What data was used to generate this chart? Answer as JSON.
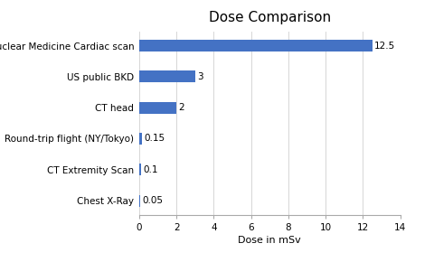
{
  "title": "Dose Comparison",
  "xlabel": "Dose in mSv",
  "categories": [
    "Chest X-Ray",
    "CT Extremity Scan",
    "Round-trip flight (NY/Tokyo)",
    "CT head",
    "US public BKD",
    "Nuclear Medicine Cardiac scan"
  ],
  "values": [
    0.05,
    0.1,
    0.15,
    2,
    3,
    12.5
  ],
  "labels": [
    "0.05",
    "0.1",
    "0.15",
    "2",
    "3",
    "12.5"
  ],
  "bar_color": "#4472c4",
  "xlim": [
    0,
    14
  ],
  "xticks": [
    0,
    2,
    4,
    6,
    8,
    10,
    12,
    14
  ],
  "background_color": "#ffffff",
  "title_fontsize": 11,
  "label_fontsize": 7.5,
  "axis_label_fontsize": 8,
  "value_label_fontsize": 7.5,
  "bar_height": 0.38
}
